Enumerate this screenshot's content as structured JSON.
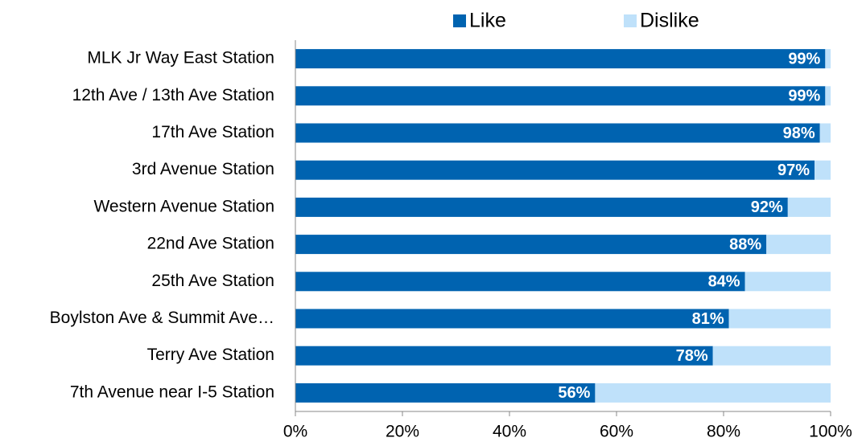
{
  "chart_data": {
    "type": "stacked-barh",
    "categories": [
      "MLK Jr Way East Station",
      "12th Ave / 13th Ave Station",
      "17th Ave Station",
      "3rd Avenue Station",
      "Western Avenue Station",
      "22nd Ave Station",
      "25th Ave Station",
      "Boylston Ave & Summit Ave…",
      "Terry Ave Station",
      "7th Avenue near I-5 Station"
    ],
    "series": [
      {
        "name": "Like",
        "color": "#0063b0",
        "values": [
          99,
          99,
          98,
          97,
          92,
          88,
          84,
          81,
          78,
          56
        ],
        "value_labels": [
          "99%",
          "99%",
          "98%",
          "97%",
          "92%",
          "88%",
          "84%",
          "81%",
          "78%",
          "56%"
        ]
      },
      {
        "name": "Dislike",
        "color": "#bfe1fa",
        "values": [
          1,
          1,
          2,
          3,
          8,
          12,
          16,
          19,
          22,
          44
        ]
      }
    ],
    "xlim": [
      0,
      100
    ],
    "xticks": [
      {
        "value": 0,
        "label": "0%"
      },
      {
        "value": 20,
        "label": "20%"
      },
      {
        "value": 40,
        "label": "40%"
      },
      {
        "value": 60,
        "label": "60%"
      },
      {
        "value": 80,
        "label": "80%"
      },
      {
        "value": 100,
        "label": "100%"
      }
    ],
    "legend": "top",
    "grid": false
  }
}
